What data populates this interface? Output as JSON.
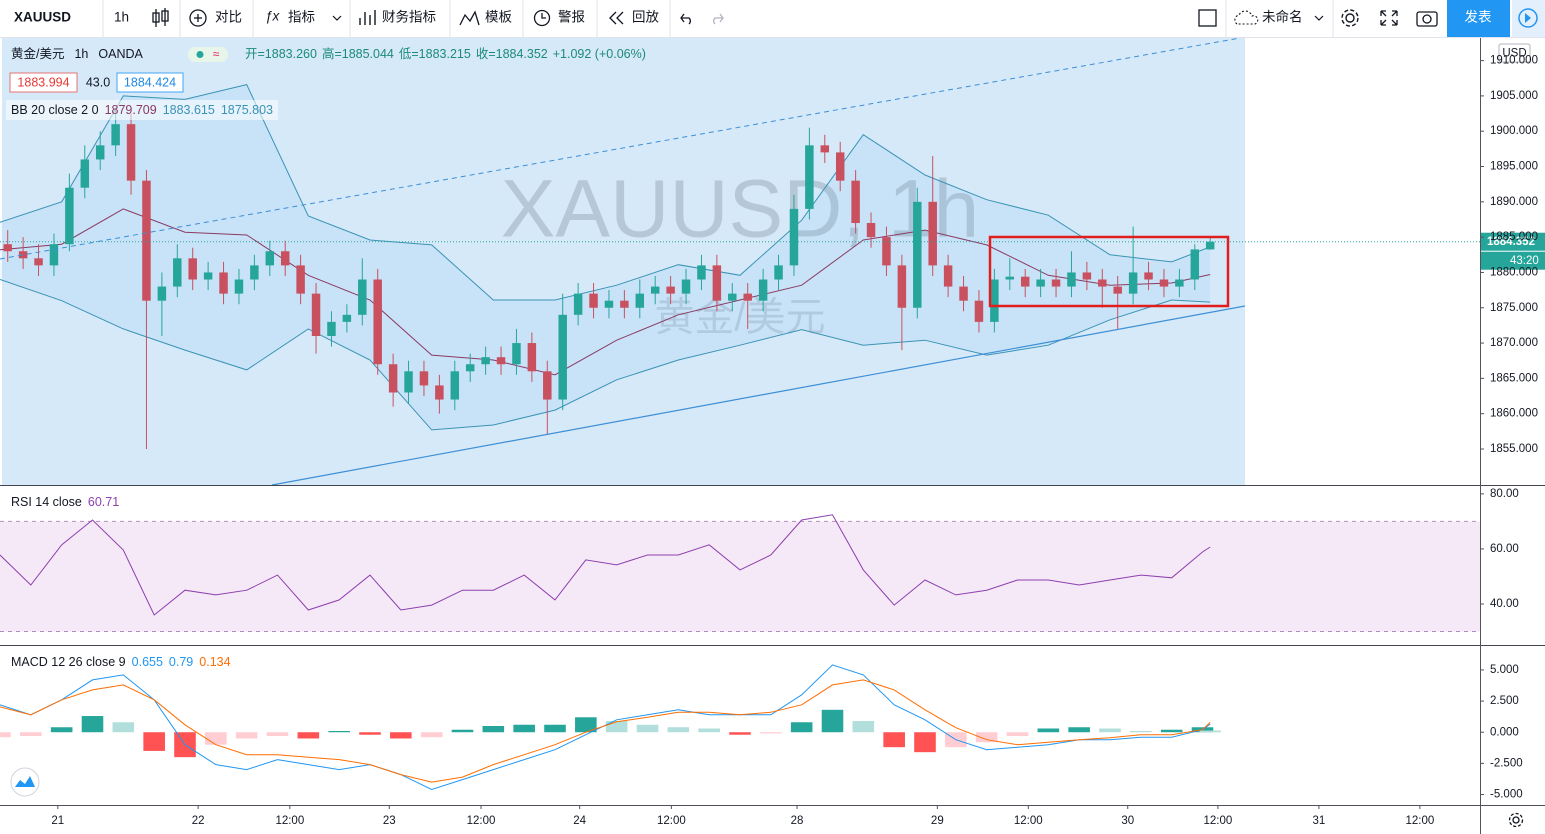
{
  "toolbar": {
    "symbol": "XAUUSD",
    "interval": "1h",
    "items": [
      "对比",
      "指标",
      "财务指标",
      "模板",
      "警报",
      "回放"
    ],
    "layout_name": "未命名",
    "publish": "发表"
  },
  "chart_data": [
    {
      "type": "candlestick",
      "title": "黄金/美元",
      "interval": "1h",
      "source": "OANDA",
      "watermark": "XAUUSD, 1h",
      "currency": "USD",
      "ohlc_legend": [
        "开=1883.260",
        "高=1885.044",
        "低=1883.215",
        "收=1884.352",
        "+1.092 (+0.06%)"
      ],
      "quote": {
        "bid": 1883.994,
        "spread": {
          "value": 43,
          "label": "43.0"
        },
        "ask": 1884.424
      },
      "countdown": "43:20",
      "up_color": "#26a69a",
      "down_color": "#c9505f",
      "xlim": [
        0,
        192
      ],
      "ylim": [
        1849.9,
        1913.2
      ],
      "yticks": [
        {
          "value": 1855,
          "label": "1855.000"
        },
        {
          "value": 1860,
          "label": "1860.000"
        },
        {
          "value": 1865,
          "label": "1865.000"
        },
        {
          "value": 1870,
          "label": "1870.000"
        },
        {
          "value": 1875,
          "label": "1875.000"
        },
        {
          "value": 1880,
          "label": "1880.000"
        },
        {
          "value": 1885,
          "label": "1885.000"
        },
        {
          "value": 1890,
          "label": "1890.000"
        },
        {
          "value": 1895,
          "label": "1895.000"
        },
        {
          "value": 1900,
          "label": "1900.000"
        },
        {
          "value": 1905,
          "label": "1905.000"
        },
        {
          "value": 1910,
          "label": "1910.000"
        }
      ],
      "x": [
        1,
        3,
        5,
        7,
        9,
        11,
        13,
        15,
        17,
        19,
        21,
        23,
        25,
        27,
        29,
        31,
        33,
        35,
        37,
        39,
        41,
        43,
        45,
        47,
        49,
        51,
        53,
        55,
        57,
        59,
        61,
        63,
        65,
        67,
        69,
        71,
        73,
        75,
        77,
        79,
        81,
        83,
        85,
        87,
        89,
        91,
        93,
        95,
        97,
        99,
        101,
        103,
        105,
        107,
        109,
        111,
        113,
        115,
        117,
        119,
        121,
        123,
        125,
        127,
        129,
        131,
        133,
        135,
        137,
        139,
        141,
        143,
        145,
        147,
        149,
        151,
        153,
        155,
        157
      ],
      "ohlc": [
        [
          1884,
          1886,
          1881.5,
          1883
        ],
        [
          1883,
          1885,
          1880.5,
          1882
        ],
        [
          1882,
          1884,
          1879.5,
          1881
        ],
        [
          1881,
          1885.5,
          1879.5,
          1884
        ],
        [
          1884,
          1894,
          1883,
          1892
        ],
        [
          1892,
          1898,
          1890.5,
          1896
        ],
        [
          1896,
          1900,
          1894.5,
          1898
        ],
        [
          1898,
          1903,
          1896.5,
          1901
        ],
        [
          1901,
          1902.5,
          1891,
          1893
        ],
        [
          1893,
          1894.5,
          1855,
          1876
        ],
        [
          1876,
          1880,
          1871,
          1878
        ],
        [
          1878,
          1884,
          1876.5,
          1882
        ],
        [
          1882,
          1883.5,
          1877.5,
          1879
        ],
        [
          1879,
          1881.5,
          1877.5,
          1880
        ],
        [
          1880,
          1881.5,
          1875.5,
          1877
        ],
        [
          1877,
          1880.5,
          1875.5,
          1879
        ],
        [
          1879,
          1882.5,
          1877.5,
          1881
        ],
        [
          1881,
          1884.5,
          1879.5,
          1883
        ],
        [
          1883,
          1884.5,
          1879.5,
          1881
        ],
        [
          1881,
          1882.5,
          1875.5,
          1877
        ],
        [
          1877,
          1878.5,
          1868.5,
          1871
        ],
        [
          1871,
          1874.5,
          1869.5,
          1873
        ],
        [
          1873,
          1875.5,
          1871.5,
          1874
        ],
        [
          1874,
          1882,
          1872.5,
          1879
        ],
        [
          1879,
          1880.5,
          1865.5,
          1867
        ],
        [
          1867,
          1868.5,
          1861,
          1863
        ],
        [
          1863,
          1867.5,
          1861.5,
          1866
        ],
        [
          1866,
          1867.5,
          1862.5,
          1864
        ],
        [
          1864,
          1865.5,
          1860,
          1862
        ],
        [
          1862,
          1867.5,
          1860.5,
          1866
        ],
        [
          1866,
          1868.5,
          1864.5,
          1867
        ],
        [
          1867,
          1869.5,
          1865.5,
          1868
        ],
        [
          1868,
          1869.5,
          1865.5,
          1867
        ],
        [
          1867,
          1872,
          1865.5,
          1870
        ],
        [
          1870,
          1871.5,
          1864.5,
          1866
        ],
        [
          1866,
          1867.5,
          1857,
          1862
        ],
        [
          1862,
          1877,
          1860.5,
          1874
        ],
        [
          1874,
          1878.5,
          1872.5,
          1877
        ],
        [
          1877,
          1878.5,
          1873.5,
          1875
        ],
        [
          1875,
          1877.5,
          1873.5,
          1876
        ],
        [
          1876,
          1877.5,
          1873.5,
          1875
        ],
        [
          1875,
          1879,
          1873.5,
          1877
        ],
        [
          1877,
          1879.5,
          1875.5,
          1878
        ],
        [
          1878,
          1879.5,
          1875.5,
          1877
        ],
        [
          1877,
          1880.5,
          1875.5,
          1879
        ],
        [
          1879,
          1882.5,
          1877.5,
          1881
        ],
        [
          1881,
          1882.5,
          1874.5,
          1876
        ],
        [
          1876,
          1878.5,
          1874.5,
          1877
        ],
        [
          1877,
          1878.5,
          1872,
          1876
        ],
        [
          1876,
          1880.5,
          1874.5,
          1879
        ],
        [
          1879,
          1882.5,
          1877.5,
          1881
        ],
        [
          1881,
          1891,
          1879.5,
          1889
        ],
        [
          1889,
          1900.5,
          1887.5,
          1898
        ],
        [
          1898,
          1899.5,
          1895.5,
          1897
        ],
        [
          1897,
          1898.5,
          1891.5,
          1893
        ],
        [
          1893,
          1894.5,
          1885.5,
          1887
        ],
        [
          1887,
          1888.5,
          1883.5,
          1885
        ],
        [
          1885,
          1886.5,
          1879.5,
          1881
        ],
        [
          1881,
          1882.5,
          1869,
          1875
        ],
        [
          1875,
          1892,
          1873.5,
          1890
        ],
        [
          1890,
          1896.5,
          1879.5,
          1881
        ],
        [
          1881,
          1882.5,
          1876.5,
          1878
        ],
        [
          1878,
          1879.5,
          1874.5,
          1876
        ],
        [
          1876,
          1877.5,
          1871.5,
          1873
        ],
        [
          1873,
          1880.5,
          1871.5,
          1879
        ],
        [
          1879,
          1882,
          1877.5,
          1879.4
        ],
        [
          1879.4,
          1880.5,
          1876.5,
          1878
        ],
        [
          1878,
          1880.5,
          1876.5,
          1879
        ],
        [
          1879,
          1880.5,
          1876.5,
          1878
        ],
        [
          1878,
          1883,
          1876.5,
          1880
        ],
        [
          1880,
          1881.5,
          1877.5,
          1879
        ],
        [
          1879,
          1880.5,
          1875,
          1878
        ],
        [
          1878,
          1879.5,
          1872,
          1877
        ],
        [
          1877,
          1886.5,
          1875.5,
          1880
        ],
        [
          1880,
          1881.5,
          1877.5,
          1879
        ],
        [
          1879,
          1880.5,
          1876.5,
          1878
        ],
        [
          1878,
          1880.5,
          1876.5,
          1879
        ],
        [
          1879,
          1884,
          1877.5,
          1883.26
        ],
        [
          1883.26,
          1885.044,
          1883.215,
          1884.352
        ]
      ],
      "bb": {
        "name": "BB 20 close 2 0",
        "basis_color": "#8b3a62",
        "band_color": "#3a93b5",
        "x": [
          0,
          8,
          16,
          24,
          32,
          40,
          48,
          56,
          64,
          72,
          80,
          88,
          96,
          104,
          112,
          120,
          128,
          136,
          144,
          152,
          157
        ],
        "upper": [
          1887.1,
          1890,
          1905,
          1904.5,
          1906.6,
          1888,
          1884.6,
          1883.9,
          1876.1,
          1876.1,
          1878.2,
          1881.1,
          1879.6,
          1887.4,
          1899.5,
          1893.8,
          1890.3,
          1888.1,
          1882.5,
          1881.5,
          1883.615
        ],
        "basis": [
          1883.2,
          1884,
          1889,
          1885.7,
          1885.3,
          1879.6,
          1876.1,
          1868.3,
          1867.6,
          1865.5,
          1870.4,
          1874,
          1876.1,
          1878.2,
          1884.6,
          1886,
          1883.9,
          1879.6,
          1878.2,
          1878.5,
          1879.709
        ],
        "lower": [
          1879,
          1876,
          1872,
          1869,
          1866.2,
          1872,
          1867.6,
          1857.7,
          1858.4,
          1860.5,
          1864.8,
          1867.6,
          1869.7,
          1871.9,
          1869.7,
          1870.4,
          1868.3,
          1869.7,
          1873.3,
          1876.1,
          1875.803
        ]
      }
    },
    {
      "type": "line",
      "title": "RSI 14 close",
      "color": "#8e3fae",
      "band_levels": [
        30,
        70
      ],
      "xlim": [
        0,
        192
      ],
      "ylim": [
        25.1,
        82.5
      ],
      "yticks": [
        {
          "value": 40,
          "label": "40.00"
        },
        {
          "value": 60,
          "label": "60.00"
        },
        {
          "value": 80,
          "label": "80.00"
        }
      ],
      "x": [
        0,
        4,
        8,
        12,
        16,
        20,
        24,
        28,
        32,
        36,
        40,
        44,
        48,
        52,
        56,
        60,
        64,
        68,
        72,
        76,
        80,
        84,
        88,
        92,
        96,
        100,
        104,
        108,
        112,
        116,
        120,
        124,
        128,
        132,
        136,
        140,
        144,
        148,
        152,
        156,
        157
      ],
      "values": [
        57.8,
        46.9,
        61.5,
        70.5,
        59.6,
        36,
        45,
        43.3,
        45,
        50.5,
        37.8,
        41.5,
        50.5,
        37.8,
        39.6,
        45,
        45,
        50.5,
        41.5,
        56,
        54.2,
        57.8,
        57.8,
        61.5,
        52.4,
        57.8,
        70.5,
        72.4,
        52.4,
        39.6,
        48.7,
        43.3,
        45,
        48.7,
        48.7,
        46.9,
        48.7,
        50.5,
        49.5,
        58.9,
        60.71
      ]
    },
    {
      "type": "macd",
      "title": "MACD 12 26 close 9",
      "macd_color": "#2196f3",
      "signal_color": "#ff6d00",
      "hist_colors": [
        "#26a69a",
        "#b2dfdb",
        "#ff5252",
        "#ffcdd2"
      ],
      "xlim": [
        0,
        192
      ],
      "ylim": [
        -5.84,
        6.84
      ],
      "yticks": [
        {
          "value": -5,
          "label": "-5.000"
        },
        {
          "value": -2.5,
          "label": "-2.500"
        },
        {
          "value": 0,
          "label": "0.000"
        },
        {
          "value": 2.5,
          "label": "2.500"
        },
        {
          "value": 5,
          "label": "5.000"
        }
      ],
      "xticks": [
        {
          "value": 7.5,
          "label": "21"
        },
        {
          "value": 25.7,
          "label": "22"
        },
        {
          "value": 37.6,
          "label": "12:00"
        },
        {
          "value": 50.5,
          "label": "23"
        },
        {
          "value": 62.4,
          "label": "12:00"
        },
        {
          "value": 75.2,
          "label": "24"
        },
        {
          "value": 87.1,
          "label": "12:00"
        },
        {
          "value": 103.4,
          "label": "28"
        },
        {
          "value": 121.6,
          "label": "29"
        },
        {
          "value": 133.4,
          "label": "12:00"
        },
        {
          "value": 146.3,
          "label": "30"
        },
        {
          "value": 158,
          "label": "12:00"
        },
        {
          "value": 171.1,
          "label": "31"
        },
        {
          "value": 184.2,
          "label": "12:00"
        }
      ],
      "x": [
        0,
        4,
        8,
        12,
        16,
        20,
        24,
        28,
        32,
        36,
        40,
        44,
        48,
        52,
        56,
        60,
        64,
        68,
        72,
        76,
        80,
        84,
        88,
        92,
        96,
        100,
        104,
        108,
        112,
        116,
        120,
        124,
        128,
        132,
        136,
        140,
        144,
        148,
        152,
        156,
        157
      ],
      "macd": [
        2.2,
        1.4,
        2.6,
        4.2,
        4.6,
        2.6,
        -1,
        -2.6,
        -3,
        -2.2,
        -2.6,
        -3,
        -2.6,
        -3.4,
        -4.6,
        -3.8,
        -3,
        -2.2,
        -1.4,
        -0.2,
        1,
        1.4,
        1.8,
        1.4,
        1.4,
        1.4,
        3,
        5.4,
        4.6,
        2.2,
        1,
        -0.6,
        -1.4,
        -1.2,
        -1,
        -0.6,
        -0.6,
        -0.4,
        -0.4,
        0.2,
        0.655
      ],
      "signal": [
        2.04,
        1.4,
        2.6,
        3.4,
        3.8,
        2.6,
        0.6,
        -1,
        -1.8,
        -1.8,
        -2,
        -2.2,
        -2.6,
        -3.4,
        -4,
        -3.6,
        -2.6,
        -1.8,
        -1,
        0,
        0.84,
        1.2,
        1.6,
        1.6,
        1.4,
        1.6,
        2.2,
        3.8,
        4.2,
        3.4,
        1.8,
        0.36,
        -0.6,
        -1,
        -0.8,
        -0.6,
        -0.44,
        -0.2,
        -0.2,
        0.2,
        0.79
      ],
      "hist": [
        -0.4,
        -0.3,
        0.4,
        1.3,
        0.8,
        -1.5,
        -2,
        -1,
        -0.5,
        -0.3,
        -0.5,
        0.1,
        -0.2,
        -0.5,
        -0.4,
        0.2,
        0.5,
        0.6,
        0.6,
        1.2,
        0.9,
        0.6,
        0.4,
        0.3,
        -0.2,
        -0.1,
        0.8,
        1.8,
        0.9,
        -1.2,
        -1.6,
        -1.2,
        -0.8,
        -0.3,
        0.3,
        0.4,
        0.3,
        0.1,
        0.2,
        0.4,
        0.134
      ]
    }
  ]
}
